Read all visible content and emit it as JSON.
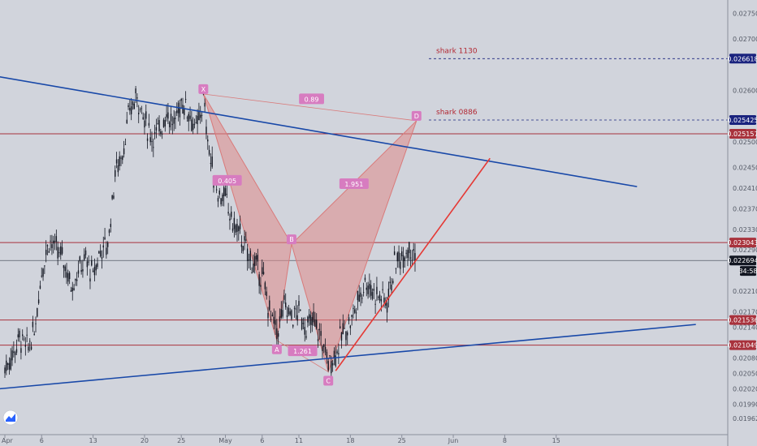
{
  "colors": {
    "background": "#d1d4dc",
    "candle": "#131722",
    "trend_blue": "#1848a8",
    "support_red": "#e53935",
    "hline_red": "#a8323c",
    "pattern_fill": "#e08a8a",
    "pattern_edge": "#d97a7a",
    "point_label_bg": "#d77cc0",
    "ratio_label_bg": "#d77cc0",
    "price_tag_red": "#a8323c",
    "price_tag_navy": "#1a237e",
    "price_tag_dark": "#131722",
    "crosshair": "#555a66",
    "text_muted": "#555a66"
  },
  "chart_data": {
    "type": "candlestick",
    "title": "",
    "xlabel": "",
    "ylabel": "",
    "ylim": [
      0.01945,
      0.0276
    ],
    "x_ticks": [
      "Apr",
      "6",
      "13",
      "20",
      "25",
      "May",
      "6",
      "11",
      "18",
      "25",
      "Jun",
      "8",
      "15"
    ],
    "y_ticks": [
      "0.027500",
      "0.027000",
      "0.026000",
      "0.025000",
      "0.024500",
      "0.024100",
      "0.023700",
      "0.023300",
      "0.022900",
      "0.022100",
      "0.021700",
      "0.021400",
      "0.020800",
      "0.020500",
      "0.020200",
      "0.019900",
      "0.019620"
    ],
    "price_tags": [
      {
        "label": "0.026618",
        "value": 0.026618,
        "style": "navy"
      },
      {
        "label": "0.025425",
        "value": 0.025425,
        "style": "navy"
      },
      {
        "label": "0.025157",
        "value": 0.025157,
        "style": "red"
      },
      {
        "label": "0.023043",
        "value": 0.023043,
        "style": "red"
      },
      {
        "label": "0.022694",
        "value": 0.022694,
        "style": "dark"
      },
      {
        "label": "34:58",
        "value": 0.02249,
        "style": "dark"
      },
      {
        "label": "0.021536",
        "value": 0.021536,
        "style": "red"
      },
      {
        "label": "0.021049",
        "value": 0.021049,
        "style": "red"
      }
    ],
    "horizontal_lines": [
      0.025157,
      0.023043,
      0.021536,
      0.021049
    ],
    "crosshair_price": 0.022694,
    "dashed_levels": [
      {
        "label": "shark 1130",
        "value": 0.026618
      },
      {
        "label": "shark 0886",
        "value": 0.025425
      }
    ],
    "harmonic_pattern": {
      "points": [
        {
          "label": "X",
          "date": "2020-04-28",
          "price": 0.02593
        },
        {
          "label": "A",
          "date": "2020-05-08",
          "price": 0.02114
        },
        {
          "label": "B",
          "date": "2020-05-10",
          "price": 0.02301
        },
        {
          "label": "C",
          "date": "2020-05-15",
          "price": 0.02053
        },
        {
          "label": "D",
          "date": "2020-05-27",
          "price": 0.02541
        }
      ],
      "ratios": [
        {
          "label": "0.405"
        },
        {
          "label": "1.261"
        },
        {
          "label": "1.951"
        },
        {
          "label": "0.89"
        }
      ]
    },
    "trendlines": [
      {
        "name": "upper",
        "from": {
          "date": "2020-03-29",
          "price": 0.02632
        },
        "to": {
          "date": "2020-06-26",
          "price": 0.02413
        }
      },
      {
        "name": "lower",
        "from": {
          "date": "2020-03-29",
          "price": 0.02017
        },
        "to": {
          "date": "2020-07-04",
          "price": 0.02145
        }
      },
      {
        "name": "support",
        "from": {
          "date": "2020-05-16",
          "price": 0.02055
        },
        "to": {
          "date": "2020-06-06",
          "price": 0.02468
        }
      }
    ],
    "price_path": [
      [
        "2020-04-01",
        0.0206
      ],
      [
        "2020-04-02",
        0.02085
      ],
      [
        "2020-04-03",
        0.0212
      ],
      [
        "2020-04-04",
        0.02098
      ],
      [
        "2020-04-05",
        0.0213
      ],
      [
        "2020-04-06",
        0.0225
      ],
      [
        "2020-04-07",
        0.0231
      ],
      [
        "2020-04-08",
        0.0229
      ],
      [
        "2020-04-09",
        0.0227
      ],
      [
        "2020-04-10",
        0.0222
      ],
      [
        "2020-04-11",
        0.0225
      ],
      [
        "2020-04-12",
        0.0227
      ],
      [
        "2020-04-13",
        0.0224
      ],
      [
        "2020-04-14",
        0.0229
      ],
      [
        "2020-04-15",
        0.023
      ],
      [
        "2020-04-16",
        0.0244
      ],
      [
        "2020-04-17",
        0.0248
      ],
      [
        "2020-04-18",
        0.0256
      ],
      [
        "2020-04-19",
        0.0259
      ],
      [
        "2020-04-20",
        0.0254
      ],
      [
        "2020-04-21",
        0.0251
      ],
      [
        "2020-04-22",
        0.0252
      ],
      [
        "2020-04-23",
        0.0256
      ],
      [
        "2020-04-24",
        0.0253
      ],
      [
        "2020-04-25",
        0.0258
      ],
      [
        "2020-04-26",
        0.0256
      ],
      [
        "2020-04-27",
        0.0252
      ],
      [
        "2020-04-28",
        0.0258
      ],
      [
        "2020-04-29",
        0.0246
      ],
      [
        "2020-04-30",
        0.024
      ],
      [
        "2020-05-01",
        0.0239
      ],
      [
        "2020-05-02",
        0.0234
      ],
      [
        "2020-05-03",
        0.0232
      ],
      [
        "2020-05-04",
        0.0228
      ],
      [
        "2020-05-05",
        0.0226
      ],
      [
        "2020-05-06",
        0.0224
      ],
      [
        "2020-05-07",
        0.0217
      ],
      [
        "2020-05-08",
        0.0213
      ],
      [
        "2020-05-09",
        0.0218
      ],
      [
        "2020-05-10",
        0.0216
      ],
      [
        "2020-05-11",
        0.0217
      ],
      [
        "2020-05-12",
        0.0214
      ],
      [
        "2020-05-13",
        0.0215
      ],
      [
        "2020-05-14",
        0.0212
      ],
      [
        "2020-05-15",
        0.0207
      ],
      [
        "2020-05-16",
        0.0209
      ],
      [
        "2020-05-17",
        0.0213
      ],
      [
        "2020-05-18",
        0.0215
      ],
      [
        "2020-05-19",
        0.0219
      ],
      [
        "2020-05-20",
        0.0223
      ],
      [
        "2020-05-21",
        0.0221
      ],
      [
        "2020-05-22",
        0.022
      ],
      [
        "2020-05-23",
        0.0219
      ],
      [
        "2020-05-24",
        0.0226
      ],
      [
        "2020-05-25",
        0.0228
      ],
      [
        "2020-05-26",
        0.023
      ],
      [
        "2020-05-27",
        0.02269
      ]
    ]
  }
}
